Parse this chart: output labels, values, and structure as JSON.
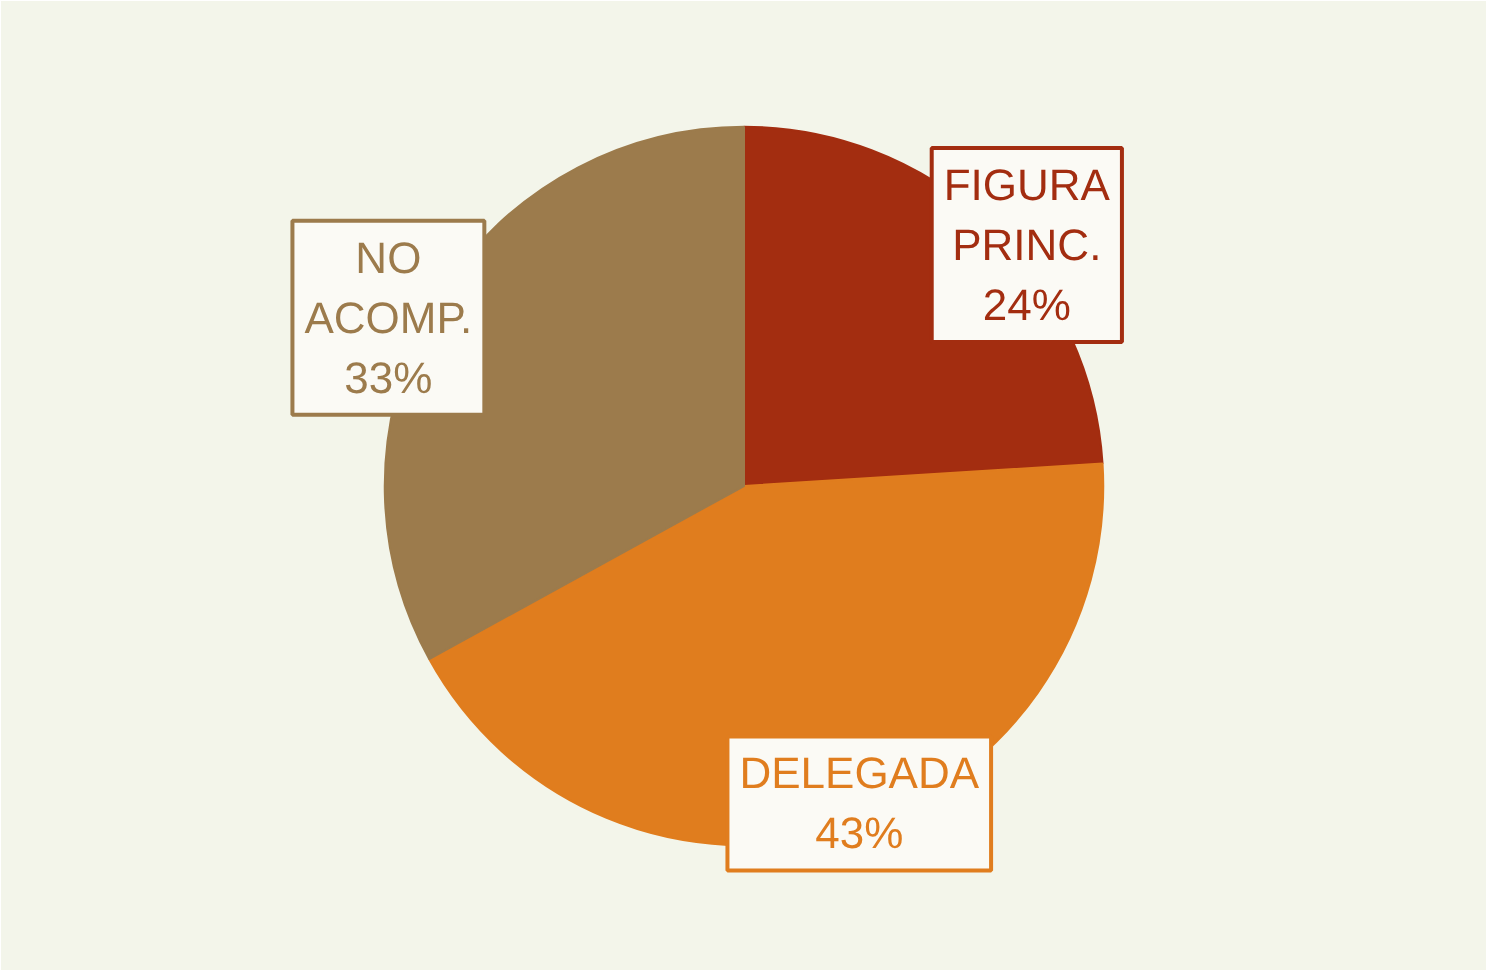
{
  "chart_data": {
    "type": "pie",
    "categories": [
      "FIGURA PRINC.",
      "DELEGADA",
      "NO ACOMP."
    ],
    "values": [
      24,
      43,
      33
    ],
    "colors": [
      "#a32d10",
      "#e07d1e",
      "#9c7b4c"
    ],
    "value_labels": [
      "24%",
      "43%",
      "33%"
    ]
  }
}
